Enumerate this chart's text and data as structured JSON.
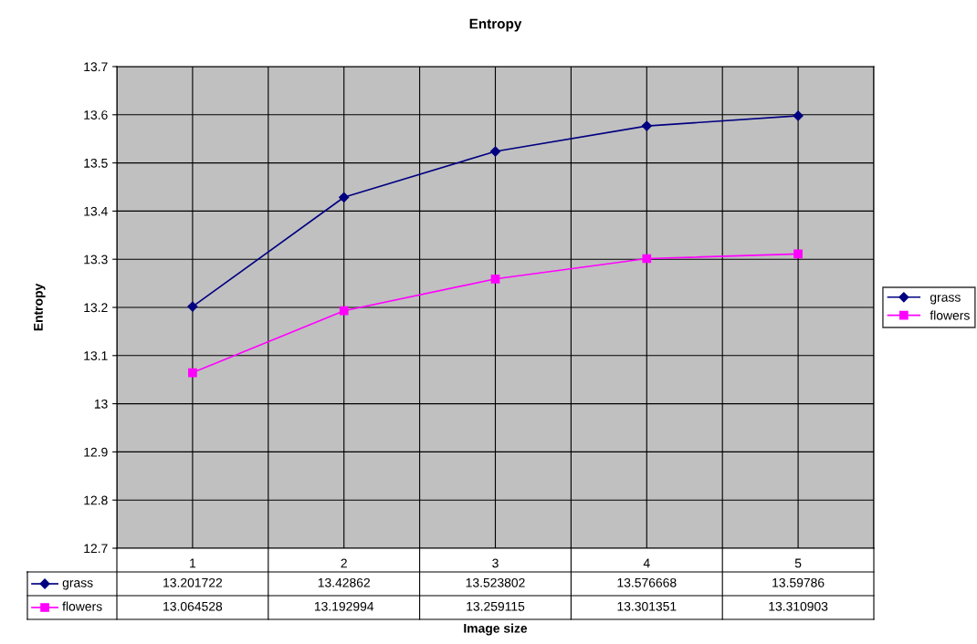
{
  "chart_data": {
    "type": "line",
    "title": "Entropy",
    "xlabel": "Image size",
    "ylabel": "Entropy",
    "categories": [
      "1",
      "2",
      "3",
      "4",
      "5"
    ],
    "series": [
      {
        "name": "grass",
        "color": "#000080",
        "marker": "diamond",
        "values": [
          13.201722,
          13.42862,
          13.523802,
          13.576668,
          13.59786
        ]
      },
      {
        "name": "flowers",
        "color": "#ff00ff",
        "marker": "square",
        "values": [
          13.064528,
          13.192994,
          13.259115,
          13.301351,
          13.310903
        ]
      }
    ],
    "ylim": [
      12.7,
      13.7
    ],
    "yticks": [
      12.7,
      12.8,
      12.9,
      13,
      13.1,
      13.2,
      13.3,
      13.4,
      13.5,
      13.6,
      13.7
    ],
    "grid": true,
    "legend": "right",
    "data_labels": true,
    "line_style": "solid"
  }
}
